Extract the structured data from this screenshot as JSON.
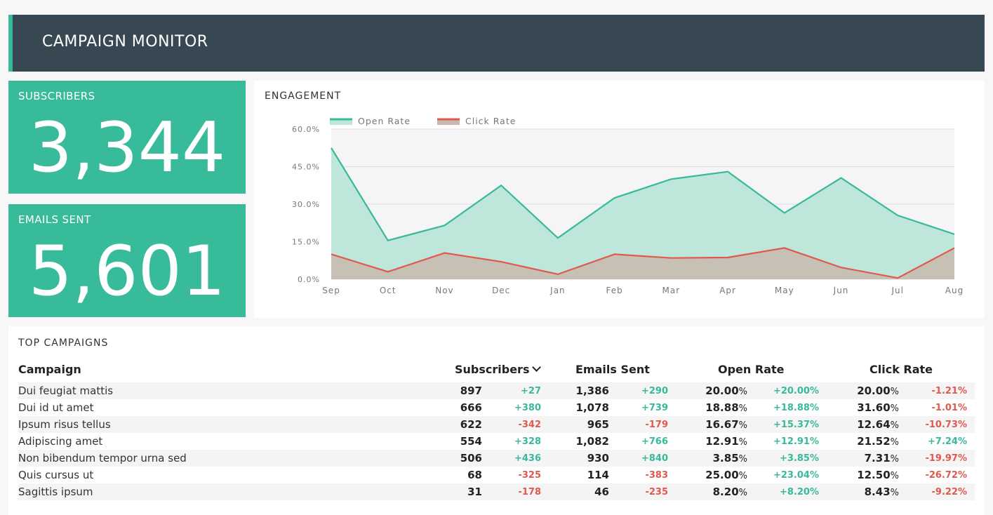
{
  "header": {
    "title": "CAMPAIGN MONITOR"
  },
  "kpis": {
    "subscribers": {
      "label": "SUBSCRIBERS",
      "value": "3,344"
    },
    "emails_sent": {
      "label": "EMAILS SENT",
      "value": "5,601"
    }
  },
  "engagement": {
    "title": "ENGAGEMENT",
    "chart_data": {
      "type": "area",
      "title": "ENGAGEMENT",
      "categories": [
        "Sep",
        "Oct",
        "Nov",
        "Dec",
        "Jan",
        "Feb",
        "Mar",
        "Apr",
        "May",
        "Jun",
        "Jul",
        "Aug"
      ],
      "series": [
        {
          "name": "Open Rate",
          "values": [
            52.5,
            15.5,
            21.5,
            37.5,
            16.5,
            32.5,
            40.0,
            43.0,
            26.5,
            40.5,
            25.5,
            18.0
          ],
          "color": "#38b99a",
          "fill": "#bee6db"
        },
        {
          "name": "Click Rate",
          "values": [
            10.0,
            3.0,
            10.5,
            7.0,
            2.0,
            10.0,
            8.5,
            8.7,
            12.5,
            4.7,
            0.5,
            12.5
          ],
          "color": "#e0594d",
          "fill": "#c9b8ae"
        }
      ],
      "ylim": [
        0,
        60
      ],
      "yticks": [
        "0.0%",
        "15.0%",
        "30.0%",
        "45.0%",
        "60.0%"
      ],
      "ytick_values": [
        0,
        15,
        30,
        45,
        60
      ],
      "grid": true,
      "legend": "top-left"
    }
  },
  "campaigns": {
    "title": "TOP CAMPAIGNS",
    "columns": {
      "campaign": "Campaign",
      "subscribers": "Subscribers",
      "emails_sent": "Emails Sent",
      "open_rate": "Open Rate",
      "click_rate": "Click Rate"
    },
    "rows": [
      {
        "name": "Dui feugiat mattis",
        "subs": "897",
        "subs_d": "+27",
        "sent": "1,386",
        "sent_d": "+290",
        "open": "20.00",
        "open_d": "+20.00%",
        "click": "20.00",
        "click_d": "-1.21%"
      },
      {
        "name": "Dui id ut amet",
        "subs": "666",
        "subs_d": "+380",
        "sent": "1,078",
        "sent_d": "+739",
        "open": "18.88",
        "open_d": "+18.88%",
        "click": "31.60",
        "click_d": "-1.01%"
      },
      {
        "name": "Ipsum risus tellus",
        "subs": "622",
        "subs_d": "-342",
        "sent": "965",
        "sent_d": "-179",
        "open": "16.67",
        "open_d": "+15.37%",
        "click": "12.64",
        "click_d": "-10.73%"
      },
      {
        "name": "Adipiscing amet",
        "subs": "554",
        "subs_d": "+328",
        "sent": "1,082",
        "sent_d": "+766",
        "open": "12.91",
        "open_d": "+12.91%",
        "click": "21.52",
        "click_d": "+7.24%"
      },
      {
        "name": "Non bibendum tempor urna sed",
        "subs": "506",
        "subs_d": "+436",
        "sent": "930",
        "sent_d": "+840",
        "open": "3.85",
        "open_d": "+3.85%",
        "click": "7.31",
        "click_d": "-19.97%"
      },
      {
        "name": "Quis cursus ut",
        "subs": "68",
        "subs_d": "-325",
        "sent": "114",
        "sent_d": "-383",
        "open": "25.00",
        "open_d": "+23.04%",
        "click": "12.50",
        "click_d": "-26.72%"
      },
      {
        "name": "Sagittis ipsum",
        "subs": "31",
        "subs_d": "-178",
        "sent": "46",
        "sent_d": "-235",
        "open": "8.20",
        "open_d": "+8.20%",
        "click": "8.43",
        "click_d": "-9.22%"
      }
    ],
    "percent_suffix": "%",
    "sort_icon": "chevron-down-icon"
  }
}
